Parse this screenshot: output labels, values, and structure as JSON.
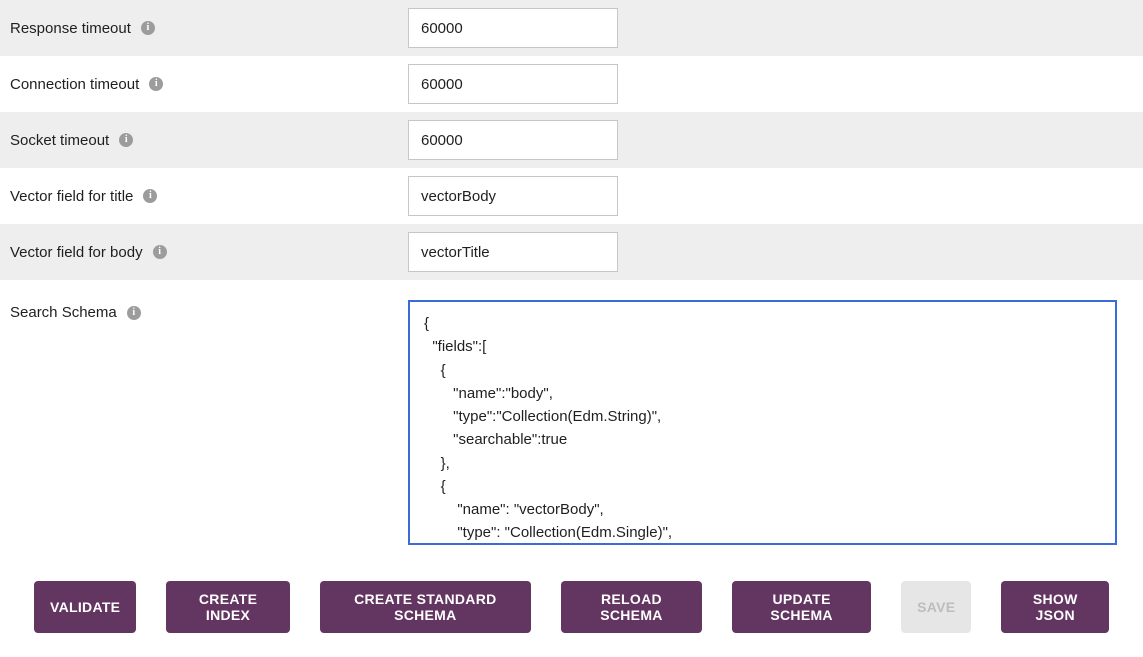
{
  "fields": {
    "responseTimeout": {
      "label": "Response timeout",
      "value": "60000"
    },
    "connectionTimeout": {
      "label": "Connection timeout",
      "value": "60000"
    },
    "socketTimeout": {
      "label": "Socket timeout",
      "value": "60000"
    },
    "vectorTitle": {
      "label": "Vector field for title",
      "value": "vectorBody"
    },
    "vectorBody": {
      "label": "Vector field for body",
      "value": "vectorTitle"
    },
    "searchSchema": {
      "label": "Search Schema",
      "value": "{\n  \"fields\":[\n    {\n       \"name\":\"body\",\n       \"type\":\"Collection(Edm.String)\",\n       \"searchable\":true\n    },\n    {\n        \"name\": \"vectorBody\",\n        \"type\": \"Collection(Edm.Single)\","
    }
  },
  "buttons": {
    "validate": "VALIDATE",
    "createIndex": "CREATE INDEX",
    "createStandardSchema": "CREATE STANDARD SCHEMA",
    "reloadSchema": "RELOAD SCHEMA",
    "updateSchema": "UPDATE SCHEMA",
    "save": "SAVE",
    "showJson": "SHOW JSON"
  },
  "colors": {
    "primaryButton": "#633561",
    "disabledButtonBg": "#e6e6e6",
    "disabledButtonText": "#bdbdbd",
    "altRow": "#eeeeee",
    "border": "#c7c7c7",
    "focusBorder": "#3a6bd6",
    "infoIcon": "#9c9c9c"
  }
}
